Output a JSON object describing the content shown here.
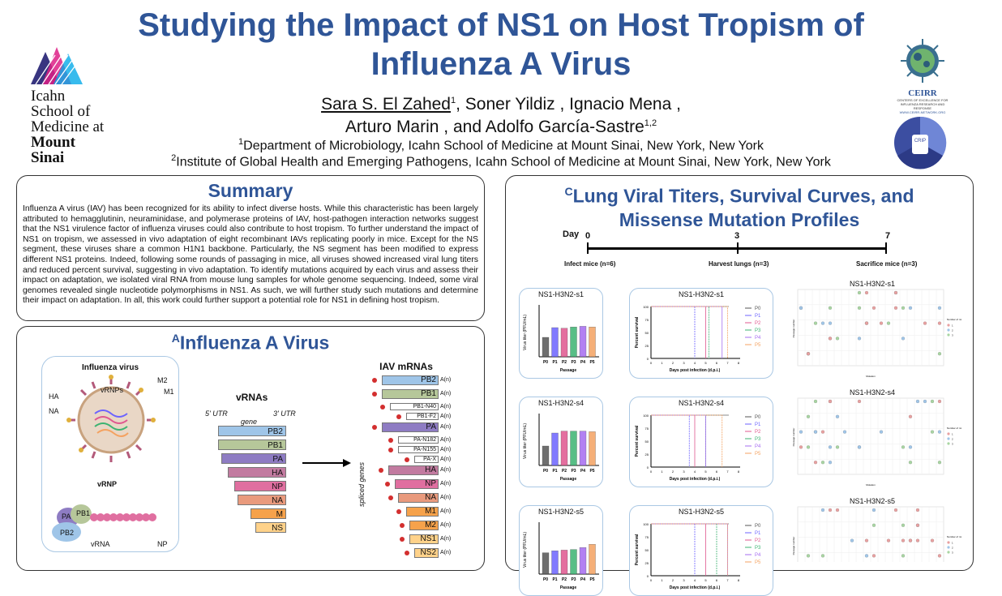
{
  "title_line1": "Studying the Impact of NS1 on Host Tropism of",
  "title_line2": "Influenza A Virus",
  "authors_line1_name": "Sara S. El Zahed",
  "authors_line1_rest": ", Soner Yildiz , Ignacio Mena ,",
  "authors_line2": "Arturo Marin , and Adolfo García-Sastre",
  "aff1": "Department of Microbiology, Icahn School of Medicine at Mount Sinai, New York, New York",
  "aff2": "Institute of Global Health and Emerging Pathogens, Icahn School of Medicine at Mount Sinai, New York, New York",
  "sup1": "1",
  "sup12": "1,2",
  "sup2": "2",
  "logo_left": [
    "Icahn",
    "School of",
    "Medicine at",
    "Mount",
    "Sinai"
  ],
  "logo_right_name": "CEIRR",
  "logo_right_sub": "CENTERS OF EXCELLENCE FOR INFLUENZA RESEARCH AND RESPONSE",
  "logo_right_url": "WWW.CEIRR-NETWORK.ORG",
  "logo_ceirs": "CRIP",
  "summary": {
    "title": "Summary",
    "text": "Influenza A virus (IAV) has been recognized for its ability to infect diverse hosts. While this characteristic has been largely attributed to hemagglutinin, neuraminidase, and polymerase proteins of IAV, host-pathogen interaction networks suggest that the NS1 virulence factor of influenza viruses could also contribute to host tropism. To further understand the impact of NS1 on tropism, we assessed in vivo adaptation of eight recombinant IAVs replicating poorly in mice. Except for the NS segment, these viruses share a common H1N1 backbone. Particularly, the NS segment has been modified to express different NS1 proteins. Indeed, following some rounds of passaging in mice, all viruses showed increased viral lung titers and reduced percent survival, suggesting in vivo adaptation. To identify mutations acquired by each virus and assess their impact on adaptation, we isolated viral RNA from mouse lung samples for whole genome sequencing. Indeed, some viral genomes revealed single nucleotide polymorphisms in NS1. As such, we will further study such mutations and determine their impact on adaptation. In all, this work could further support a potential role for NS1 in defining host tropism."
  },
  "panelA": {
    "letter": "A",
    "title": "Influenza A Virus",
    "influenza_label": "Influenza virus",
    "vrnps": "vRNPs",
    "labels": {
      "m2": "M2",
      "m1": "M1",
      "ha": "HA",
      "na": "NA"
    },
    "vrnp_title": "vRNP",
    "vrnp_parts": {
      "pa": "PA",
      "pb1": "PB1",
      "pb2": "PB2",
      "vrna": "vRNA",
      "np": "NP"
    },
    "vrnas_title": "vRNAs",
    "utr5": "5' UTR",
    "utr3": "3' UTR",
    "gene": "gene",
    "segments": [
      "PB2",
      "PB1",
      "PA",
      "HA",
      "NP",
      "NA",
      "M",
      "NS"
    ],
    "segment_colors": [
      "#9fc5e8",
      "#b6c79a",
      "#8e7cc3",
      "#c27ba0",
      "#e06fa0",
      "#e99a7d",
      "#f6a24b",
      "#ffd28a"
    ],
    "mrnas_title": "IAV mRNAs",
    "mrnas": [
      "PB2",
      "PB1",
      "PB1-N40",
      "PB1-F2",
      "PA",
      "PA-N182",
      "PA-N155",
      "PA-X",
      "HA",
      "NP",
      "NA",
      "M1",
      "M2",
      "NS1",
      "NS2"
    ],
    "polya": "A(n)",
    "spliced": "spliced genes"
  },
  "panelC": {
    "letter": "C",
    "title_line1": "Lung Viral Titers, Survival Curves, and",
    "title_line2": "Missense Mutation Profiles",
    "timeline": {
      "day_label": "Day",
      "days": [
        "0",
        "3",
        "7"
      ],
      "events": [
        "Infect mice (n=6)",
        "Harvest lungs (n=3)",
        "Sacrifice mice (n=3)"
      ]
    },
    "rows": [
      {
        "name": "NS1-H3N2-s1",
        "titers": [
          3.0,
          4.5,
          4.4,
          4.6,
          4.7,
          4.6
        ]
      },
      {
        "name": "NS1-H3N2-s4",
        "titers": [
          3.0,
          5.0,
          5.3,
          5.3,
          5.3,
          5.2
        ]
      },
      {
        "name": "NS1-H3N2-s5",
        "titers": [
          3.3,
          3.6,
          3.7,
          3.8,
          4.1,
          4.6
        ]
      }
    ],
    "titer_ylabel": "Virus titer (PFU/mL)",
    "titer_xlabel": "Passage",
    "passages": [
      "P0",
      "P1",
      "P2",
      "P3",
      "P4",
      "P5"
    ],
    "passage_colors": [
      "#555555",
      "#6c63ff",
      "#e0578f",
      "#3cb371",
      "#a56cf0",
      "#f4a261"
    ],
    "survival_ylabel": "Percent survival",
    "survival_xlabel": "Days post infection (d.p.i.)",
    "survival_ticks_y": [
      "100",
      "75",
      "50",
      "25",
      "0"
    ],
    "survival_ticks_x": [
      "0",
      "1",
      "2",
      "3",
      "4",
      "5",
      "6",
      "7",
      "8"
    ],
    "mutation_ylabel": "Passage number",
    "mutation_xlabel": "Mutation",
    "mutation_legend_title": "Number of mice",
    "mutation_legend": [
      "1",
      "2",
      "3"
    ]
  }
}
